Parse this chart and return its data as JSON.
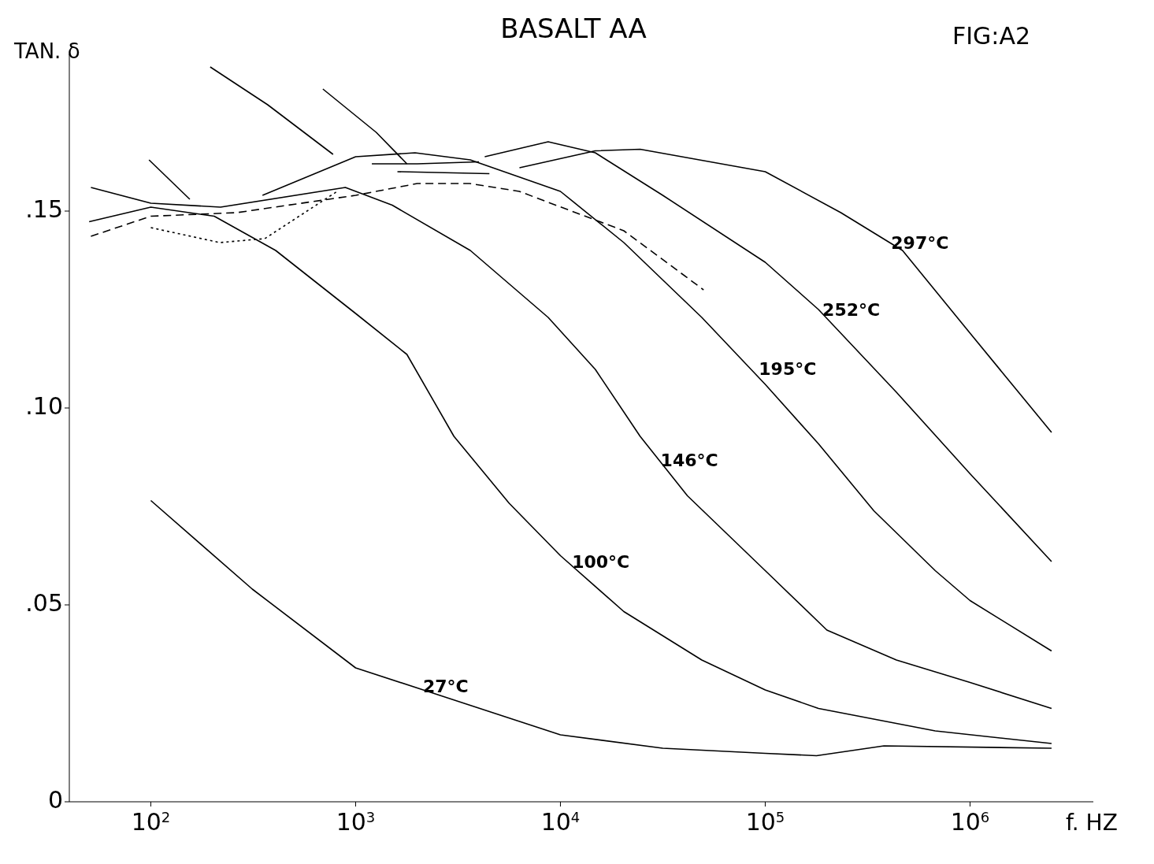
{
  "chart_data": {
    "type": "line",
    "title": "BASALT AA",
    "xlabel": "f. HZ",
    "ylabel": "TAN. δ",
    "log": "x",
    "xlim": [
      40,
      4000000
    ],
    "ylim": [
      0,
      0.19
    ],
    "xticks": [
      {
        "value": 100,
        "label": "10$^{2}$"
      },
      {
        "value": 1000,
        "label": "10$^{3}$"
      },
      {
        "value": 10000,
        "label": "10$^{4}$"
      },
      {
        "value": 100000,
        "label": "10$^{5}$"
      },
      {
        "value": 1000000,
        "label": "10$^{6}$"
      }
    ],
    "yticks": [
      {
        "value": 0,
        "label": "0"
      },
      {
        "value": 0.05,
        "label": ".05"
      },
      {
        "value": 0.1,
        "label": ".10"
      },
      {
        "value": 0.15,
        "label": ".15"
      }
    ],
    "marker": "none",
    "series": [
      {
        "color": "#000000",
        "line_style": "solid",
        "x": [
          100,
          313,
          1000,
          2140,
          10000,
          31600,
          100000,
          178000,
          380000,
          2500000
        ],
        "values": [
          0.0765,
          0.054,
          0.034,
          0.0284,
          0.017,
          0.0136,
          0.0123,
          0.0117,
          0.0142,
          0.0136
        ]
      },
      {
        "color": "#000000",
        "line_style": "solid",
        "x": [
          50,
          100,
          204,
          407,
          1000,
          1780,
          3020,
          5620,
          10000,
          20400,
          49000,
          100000,
          182000,
          676000,
          2500000
        ],
        "values": [
          0.1473,
          0.151,
          0.1487,
          0.14,
          0.124,
          0.1136,
          0.0928,
          0.0758,
          0.0625,
          0.0483,
          0.036,
          0.0284,
          0.0237,
          0.018,
          0.0148
        ]
      },
      {
        "color": "#000000",
        "line_style": "solid",
        "x": [
          51,
          100,
          219,
          891,
          1510,
          3630,
          8710,
          14800,
          24500,
          41700,
          100000,
          200000,
          437000,
          1000000,
          2500000
        ],
        "values": [
          0.156,
          0.152,
          0.151,
          0.156,
          0.1515,
          0.14,
          0.123,
          0.1098,
          0.0928,
          0.0777,
          0.0587,
          0.0436,
          0.036,
          0.0303,
          0.0237
        ]
      },
      {
        "color": "#000000",
        "line_style": "solid",
        "x": [
          351,
          1000,
          1950,
          3630,
          10000,
          20400,
          49000,
          100000,
          182000,
          339000,
          676000,
          1000000,
          2500000
        ],
        "values": [
          0.154,
          0.1638,
          0.1648,
          0.163,
          0.155,
          0.142,
          0.123,
          0.106,
          0.0909,
          0.0739,
          0.0587,
          0.0511,
          0.0383
        ]
      },
      {
        "color": "#000000",
        "line_style": "solid",
        "x": [
          4270,
          8710,
          14800,
          31600,
          100000,
          182000,
          437000,
          1000000,
          2500000
        ],
        "values": [
          0.1638,
          0.1676,
          0.1648,
          0.154,
          0.137,
          0.125,
          0.104,
          0.0833,
          0.061
        ]
      },
      {
        "color": "#000000",
        "line_style": "solid",
        "x": [
          6310,
          14800,
          24500,
          100000,
          234000,
          468000,
          1000000,
          2500000
        ],
        "values": [
          0.161,
          0.1653,
          0.1657,
          0.16,
          0.1496,
          0.14,
          0.119,
          0.0938
        ]
      },
      {
        "color": "#000000",
        "line_style": "solid",
        "x": [
          195,
          372,
          776
        ],
        "values": [
          0.1866,
          0.177,
          0.1644
        ]
      },
      {
        "color": "#000000",
        "line_style": "solid",
        "x": [
          692,
          1260,
          1780
        ],
        "values": [
          0.181,
          0.17,
          0.162
        ]
      },
      {
        "color": "#000000",
        "line_style": "solid",
        "x": [
          98,
          155
        ],
        "values": [
          0.163,
          0.153
        ]
      },
      {
        "color": "#000000",
        "line_style": "solid",
        "x": [
          1200,
          2000,
          4000
        ],
        "values": [
          0.162,
          0.162,
          0.1625
        ]
      },
      {
        "color": "#000000",
        "line_style": "solid",
        "x": [
          1600,
          4500
        ],
        "values": [
          0.16,
          0.1595
        ]
      },
      {
        "color": "#000000",
        "line_style": "dashed",
        "x": [
          51,
          100,
          263,
          1000,
          2000,
          3600,
          6300,
          20400,
          50000
        ],
        "values": [
          0.1436,
          0.1487,
          0.1496,
          0.154,
          0.157,
          0.157,
          0.155,
          0.145,
          0.13
        ]
      },
      {
        "color": "#000000",
        "line_style": "dotted",
        "x": [
          100,
          217,
          360,
          813
        ],
        "values": [
          0.1458,
          0.142,
          0.143,
          0.155
        ]
      }
    ],
    "annotations": [
      "FIG:A2",
      {
        "text": "297°C",
        "x": 394000,
        "y": 0.142
      },
      {
        "text": "252°C",
        "x": 182000,
        "y": 0.125
      },
      {
        "text": "195°C",
        "x": 89000,
        "y": 0.11
      },
      {
        "text": "146°C",
        "x": 29500,
        "y": 0.0867
      },
      {
        "text": "100°C",
        "x": 10900,
        "y": 0.061
      },
      {
        "text": "27°C",
        "x": 2040,
        "y": 0.0294
      }
    ]
  }
}
